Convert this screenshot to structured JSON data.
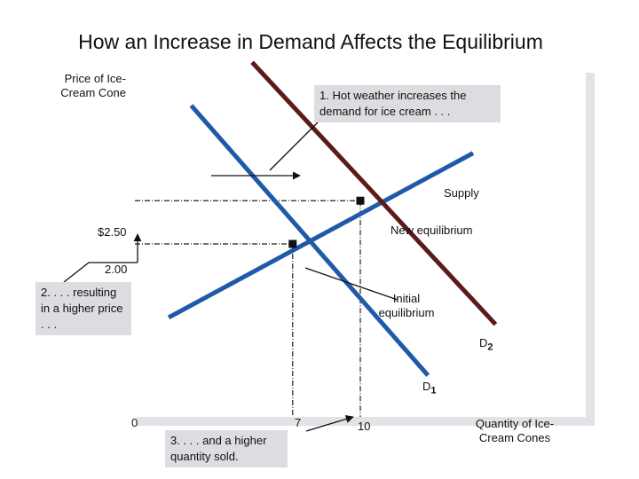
{
  "chart_data": {
    "type": "line",
    "title": "How an Increase in Demand Affects the Equilibrium",
    "ylabel": "Price of Ice-Cream Cone",
    "xlabel": "Quantity of Ice-Cream Cones",
    "xlim": [
      0,
      20
    ],
    "ylim": [
      0,
      4
    ],
    "x_ticks": [
      {
        "value": 0,
        "label": "0"
      },
      {
        "value": 7,
        "label": "7"
      },
      {
        "value": 10,
        "label": "10"
      }
    ],
    "y_ticks": [
      {
        "value": 2.0,
        "label": "2.00"
      },
      {
        "value": 2.5,
        "label": "$2.50"
      }
    ],
    "series": [
      {
        "name": "Supply",
        "color": "#1f5aa8",
        "x": [
          1.5,
          15.0
        ],
        "y": [
          1.15,
          3.05
        ]
      },
      {
        "name": "D1",
        "color": "#1f5aa8",
        "x": [
          2.5,
          13.0
        ],
        "y": [
          3.6,
          0.48
        ]
      },
      {
        "name": "D2",
        "color": "#5c1a1a",
        "x": [
          5.2,
          16.0
        ],
        "y": [
          4.1,
          1.07
        ]
      }
    ],
    "points": [
      {
        "name": "initial-equilibrium",
        "x": 7,
        "y": 2.0,
        "label": "Initial equilibrium"
      },
      {
        "name": "new-equilibrium",
        "x": 10,
        "y": 2.5,
        "label": "New equilibrium"
      }
    ],
    "labels": {
      "supply": "Supply",
      "d1": "D",
      "d1_sub": "1",
      "d2": "D",
      "d2_sub": "2"
    },
    "annotations": {
      "hot_weather": "1. Hot weather increases the demand for ice cream . . .",
      "higher_price": "2. . . . resulting in a higher price . . .",
      "higher_quantity": "3. . . . and a higher quantity sold."
    },
    "grid": false,
    "legend": "none"
  },
  "colors": {
    "demand": "#1f5aa8",
    "demand_new": "#5c1a1a",
    "annotation_box": "#dcdde0",
    "plot_shadow": "#e2e3e6"
  }
}
